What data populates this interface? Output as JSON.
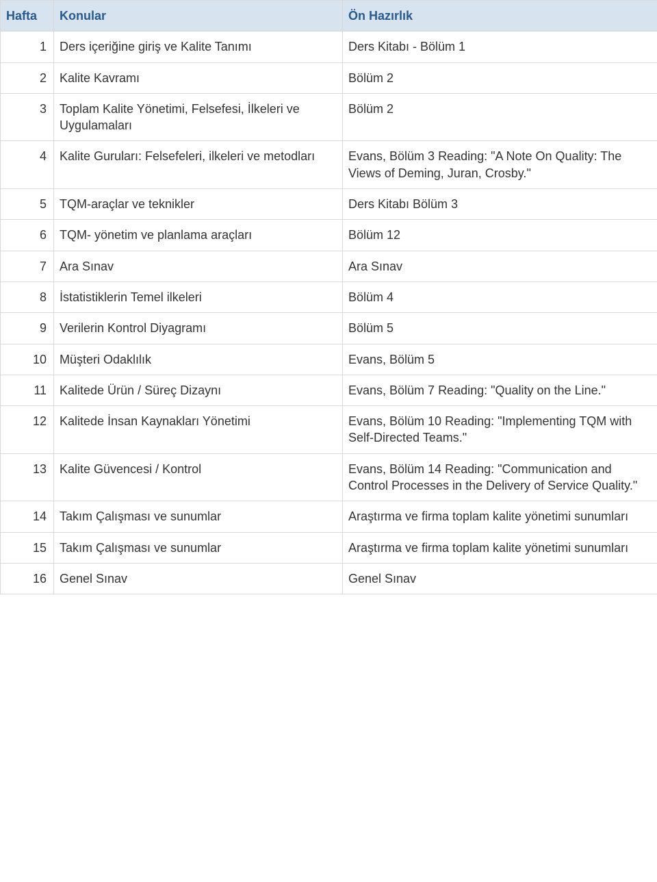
{
  "colors": {
    "header_bg": "#d7e3ee",
    "header_text": "#2a5a8a",
    "border": "#d8d8d8",
    "body_text": "#333333"
  },
  "table": {
    "headers": {
      "col1": "Hafta",
      "col2": "Konular",
      "col3": "Ön Hazırlık"
    },
    "rows": [
      {
        "week": "1",
        "topic": "Ders içeriğine giriş ve Kalite Tanımı",
        "prep": "Ders Kitabı - Bölüm 1"
      },
      {
        "week": "2",
        "topic": "Kalite Kavramı",
        "prep": "Bölüm 2"
      },
      {
        "week": "3",
        "topic": "Toplam Kalite Yönetimi, Felsefesi, İlkeleri ve Uygulamaları",
        "prep": "Bölüm 2"
      },
      {
        "week": "4",
        "topic": "Kalite Guruları: Felsefeleri, ilkeleri ve metodları",
        "prep": "Evans, Bölüm 3 Reading: \"A Note On Quality: The Views of Deming, Juran, Crosby.\""
      },
      {
        "week": "5",
        "topic": "TQM-araçlar ve teknikler",
        "prep": "Ders Kitabı Bölüm 3"
      },
      {
        "week": "6",
        "topic": "TQM- yönetim ve planlama araçları",
        "prep": "Bölüm 12"
      },
      {
        "week": "7",
        "topic": "Ara Sınav",
        "prep": "Ara Sınav"
      },
      {
        "week": "8",
        "topic": "İstatistiklerin Temel ilkeleri",
        "prep": "Bölüm 4"
      },
      {
        "week": "9",
        "topic": "Verilerin Kontrol Diyagramı",
        "prep": "Bölüm 5"
      },
      {
        "week": "10",
        "topic": "Müşteri Odaklılık",
        "prep": "Evans, Bölüm 5"
      },
      {
        "week": "11",
        "topic": "Kalitede Ürün / Süreç Dizaynı",
        "prep": "Evans, Bölüm 7 Reading: \"Quality on the Line.\""
      },
      {
        "week": "12",
        "topic": "Kalitede İnsan Kaynakları Yönetimi",
        "prep": "Evans, Bölüm 10 Reading: \"Implementing TQM with Self-Directed Teams.\""
      },
      {
        "week": "13",
        "topic": "Kalite Güvencesi / Kontrol",
        "prep": "Evans, Bölüm 14 Reading: \"Communication and Control Processes in the Delivery of Service Quality.\""
      },
      {
        "week": "14",
        "topic": "Takım Çalışması ve sunumlar",
        "prep": "Araştırma ve firma toplam kalite yönetimi sunumları"
      },
      {
        "week": "15",
        "topic": "Takım Çalışması ve sunumlar",
        "prep": "Araştırma ve firma toplam kalite yönetimi sunumları"
      },
      {
        "week": "16",
        "topic": "Genel Sınav",
        "prep": "Genel Sınav"
      }
    ]
  }
}
